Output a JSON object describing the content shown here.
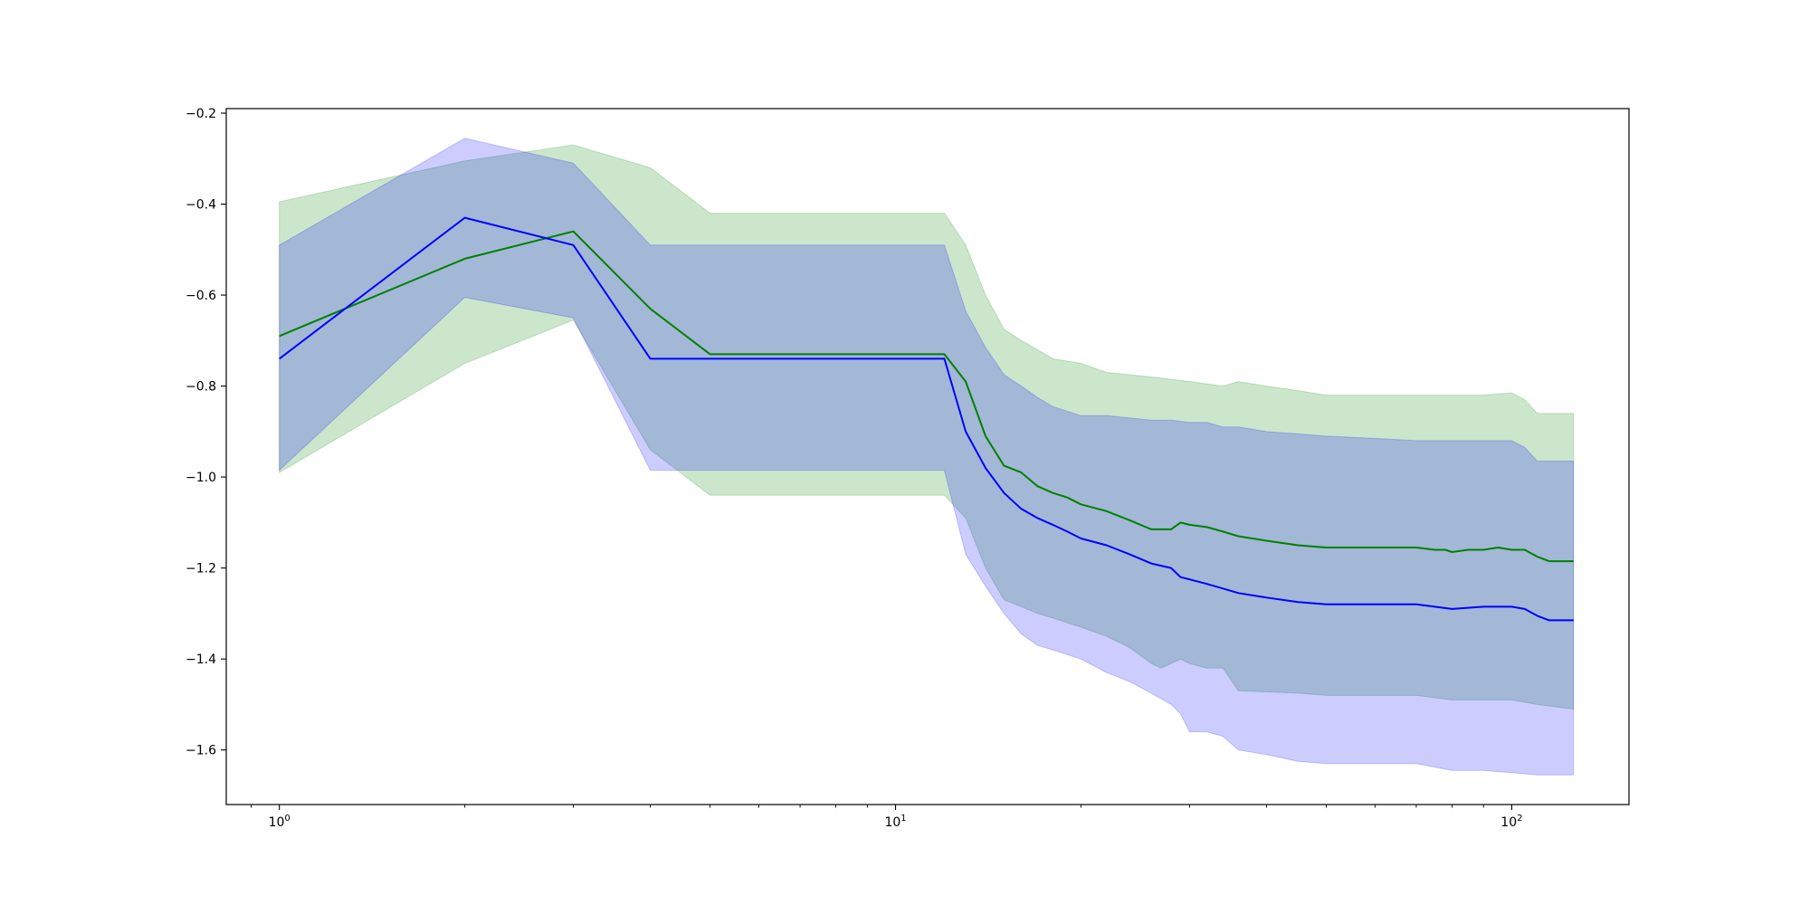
{
  "chart_data": {
    "type": "line",
    "xscale": "log",
    "xlim": [
      0.82,
      155
    ],
    "ylim": [
      -1.72,
      -0.19
    ],
    "grid": false,
    "legend": "none",
    "x_ticks": [
      {
        "value": 1,
        "base": "10",
        "exp": "0"
      },
      {
        "value": 10,
        "base": "10",
        "exp": "1"
      },
      {
        "value": 100,
        "base": "10",
        "exp": "2"
      }
    ],
    "y_ticks": [
      {
        "value": -0.2,
        "label": "−0.2"
      },
      {
        "value": -0.4,
        "label": "−0.4"
      },
      {
        "value": -0.6,
        "label": "−0.6"
      },
      {
        "value": -0.8,
        "label": "−0.8"
      },
      {
        "value": -1.0,
        "label": "−1.0"
      },
      {
        "value": -1.2,
        "label": "−1.2"
      },
      {
        "value": -1.4,
        "label": "−1.4"
      },
      {
        "value": -1.6,
        "label": "−1.6"
      }
    ],
    "series": [
      {
        "color": "#008000",
        "band_color": "#008000",
        "mean": [
          [
            1,
            -0.69
          ],
          [
            2,
            -0.52
          ],
          [
            3,
            -0.46
          ],
          [
            4,
            -0.63
          ],
          [
            5,
            -0.73
          ],
          [
            6,
            -0.73
          ],
          [
            8,
            -0.73
          ],
          [
            10,
            -0.73
          ],
          [
            12,
            -0.73
          ],
          [
            13,
            -0.79
          ],
          [
            14,
            -0.91
          ],
          [
            15,
            -0.975
          ],
          [
            16,
            -0.99
          ],
          [
            17,
            -1.02
          ],
          [
            18,
            -1.035
          ],
          [
            19,
            -1.045
          ],
          [
            20,
            -1.06
          ],
          [
            22,
            -1.075
          ],
          [
            24,
            -1.095
          ],
          [
            26,
            -1.115
          ],
          [
            28,
            -1.115
          ],
          [
            29,
            -1.1
          ],
          [
            30,
            -1.105
          ],
          [
            32,
            -1.11
          ],
          [
            34,
            -1.12
          ],
          [
            36,
            -1.13
          ],
          [
            40,
            -1.14
          ],
          [
            45,
            -1.15
          ],
          [
            50,
            -1.155
          ],
          [
            60,
            -1.155
          ],
          [
            70,
            -1.155
          ],
          [
            75,
            -1.16
          ],
          [
            78,
            -1.16
          ],
          [
            80,
            -1.165
          ],
          [
            85,
            -1.16
          ],
          [
            90,
            -1.16
          ],
          [
            95,
            -1.155
          ],
          [
            100,
            -1.16
          ],
          [
            105,
            -1.16
          ],
          [
            110,
            -1.175
          ],
          [
            115,
            -1.185
          ],
          [
            126,
            -1.185
          ]
        ],
        "lower": [
          [
            1,
            -0.99
          ],
          [
            2,
            -0.75
          ],
          [
            3,
            -0.655
          ],
          [
            4,
            -0.94
          ],
          [
            5,
            -1.04
          ],
          [
            6,
            -1.04
          ],
          [
            8,
            -1.04
          ],
          [
            10,
            -1.04
          ],
          [
            12,
            -1.04
          ],
          [
            13,
            -1.09
          ],
          [
            14,
            -1.2
          ],
          [
            15,
            -1.27
          ],
          [
            16,
            -1.285
          ],
          [
            17,
            -1.3
          ],
          [
            18,
            -1.31
          ],
          [
            20,
            -1.33
          ],
          [
            22,
            -1.35
          ],
          [
            24,
            -1.375
          ],
          [
            26,
            -1.41
          ],
          [
            27,
            -1.42
          ],
          [
            28,
            -1.41
          ],
          [
            29,
            -1.4
          ],
          [
            30,
            -1.41
          ],
          [
            32,
            -1.42
          ],
          [
            34,
            -1.42
          ],
          [
            36,
            -1.47
          ],
          [
            45,
            -1.475
          ],
          [
            50,
            -1.48
          ],
          [
            60,
            -1.48
          ],
          [
            70,
            -1.48
          ],
          [
            80,
            -1.49
          ],
          [
            90,
            -1.49
          ],
          [
            100,
            -1.49
          ],
          [
            110,
            -1.5
          ],
          [
            126,
            -1.51
          ]
        ],
        "upper": [
          [
            1,
            -0.395
          ],
          [
            2,
            -0.305
          ],
          [
            3,
            -0.27
          ],
          [
            4,
            -0.32
          ],
          [
            5,
            -0.42
          ],
          [
            6,
            -0.42
          ],
          [
            8,
            -0.42
          ],
          [
            10,
            -0.42
          ],
          [
            12,
            -0.42
          ],
          [
            13,
            -0.49
          ],
          [
            14,
            -0.6
          ],
          [
            15,
            -0.675
          ],
          [
            16,
            -0.7
          ],
          [
            17,
            -0.72
          ],
          [
            18,
            -0.74
          ],
          [
            20,
            -0.75
          ],
          [
            22,
            -0.77
          ],
          [
            24,
            -0.775
          ],
          [
            26,
            -0.78
          ],
          [
            28,
            -0.785
          ],
          [
            30,
            -0.79
          ],
          [
            32,
            -0.795
          ],
          [
            34,
            -0.8
          ],
          [
            36,
            -0.79
          ],
          [
            40,
            -0.8
          ],
          [
            45,
            -0.81
          ],
          [
            50,
            -0.82
          ],
          [
            60,
            -0.82
          ],
          [
            70,
            -0.82
          ],
          [
            80,
            -0.82
          ],
          [
            90,
            -0.82
          ],
          [
            100,
            -0.815
          ],
          [
            105,
            -0.83
          ],
          [
            110,
            -0.86
          ],
          [
            126,
            -0.86
          ]
        ]
      },
      {
        "color": "#0000ff",
        "band_color": "#0000ff",
        "mean": [
          [
            1,
            -0.74
          ],
          [
            2,
            -0.43
          ],
          [
            3,
            -0.49
          ],
          [
            4,
            -0.74
          ],
          [
            5,
            -0.74
          ],
          [
            6,
            -0.74
          ],
          [
            8,
            -0.74
          ],
          [
            10,
            -0.74
          ],
          [
            12,
            -0.74
          ],
          [
            13,
            -0.9
          ],
          [
            14,
            -0.98
          ],
          [
            15,
            -1.035
          ],
          [
            16,
            -1.07
          ],
          [
            17,
            -1.09
          ],
          [
            18,
            -1.105
          ],
          [
            19,
            -1.12
          ],
          [
            20,
            -1.135
          ],
          [
            22,
            -1.15
          ],
          [
            24,
            -1.17
          ],
          [
            26,
            -1.19
          ],
          [
            28,
            -1.2
          ],
          [
            29,
            -1.22
          ],
          [
            30,
            -1.225
          ],
          [
            32,
            -1.235
          ],
          [
            34,
            -1.245
          ],
          [
            36,
            -1.255
          ],
          [
            40,
            -1.265
          ],
          [
            45,
            -1.275
          ],
          [
            50,
            -1.28
          ],
          [
            60,
            -1.28
          ],
          [
            70,
            -1.28
          ],
          [
            75,
            -1.285
          ],
          [
            80,
            -1.29
          ],
          [
            90,
            -1.285
          ],
          [
            100,
            -1.285
          ],
          [
            105,
            -1.29
          ],
          [
            110,
            -1.305
          ],
          [
            115,
            -1.315
          ],
          [
            126,
            -1.315
          ]
        ],
        "lower": [
          [
            1,
            -0.985
          ],
          [
            2,
            -0.605
          ],
          [
            3,
            -0.65
          ],
          [
            4,
            -0.985
          ],
          [
            5,
            -0.985
          ],
          [
            6,
            -0.985
          ],
          [
            8,
            -0.985
          ],
          [
            10,
            -0.985
          ],
          [
            12,
            -0.985
          ],
          [
            13,
            -1.17
          ],
          [
            14,
            -1.24
          ],
          [
            15,
            -1.3
          ],
          [
            16,
            -1.345
          ],
          [
            17,
            -1.37
          ],
          [
            18,
            -1.38
          ],
          [
            20,
            -1.4
          ],
          [
            22,
            -1.43
          ],
          [
            24,
            -1.45
          ],
          [
            26,
            -1.475
          ],
          [
            28,
            -1.5
          ],
          [
            29,
            -1.52
          ],
          [
            30,
            -1.56
          ],
          [
            32,
            -1.56
          ],
          [
            34,
            -1.57
          ],
          [
            36,
            -1.6
          ],
          [
            40,
            -1.61
          ],
          [
            45,
            -1.625
          ],
          [
            50,
            -1.63
          ],
          [
            60,
            -1.63
          ],
          [
            70,
            -1.63
          ],
          [
            80,
            -1.645
          ],
          [
            90,
            -1.645
          ],
          [
            100,
            -1.65
          ],
          [
            110,
            -1.655
          ],
          [
            126,
            -1.655
          ]
        ],
        "upper": [
          [
            1,
            -0.49
          ],
          [
            2,
            -0.255
          ],
          [
            3,
            -0.31
          ],
          [
            4,
            -0.49
          ],
          [
            5,
            -0.49
          ],
          [
            6,
            -0.49
          ],
          [
            8,
            -0.49
          ],
          [
            10,
            -0.49
          ],
          [
            12,
            -0.49
          ],
          [
            13,
            -0.635
          ],
          [
            14,
            -0.715
          ],
          [
            15,
            -0.775
          ],
          [
            16,
            -0.8
          ],
          [
            17,
            -0.825
          ],
          [
            18,
            -0.845
          ],
          [
            20,
            -0.865
          ],
          [
            22,
            -0.865
          ],
          [
            24,
            -0.87
          ],
          [
            26,
            -0.875
          ],
          [
            28,
            -0.875
          ],
          [
            30,
            -0.88
          ],
          [
            32,
            -0.88
          ],
          [
            34,
            -0.89
          ],
          [
            36,
            -0.89
          ],
          [
            40,
            -0.9
          ],
          [
            45,
            -0.905
          ],
          [
            50,
            -0.91
          ],
          [
            60,
            -0.915
          ],
          [
            70,
            -0.92
          ],
          [
            80,
            -0.92
          ],
          [
            90,
            -0.92
          ],
          [
            100,
            -0.92
          ],
          [
            105,
            -0.935
          ],
          [
            110,
            -0.965
          ],
          [
            126,
            -0.965
          ]
        ]
      }
    ]
  }
}
